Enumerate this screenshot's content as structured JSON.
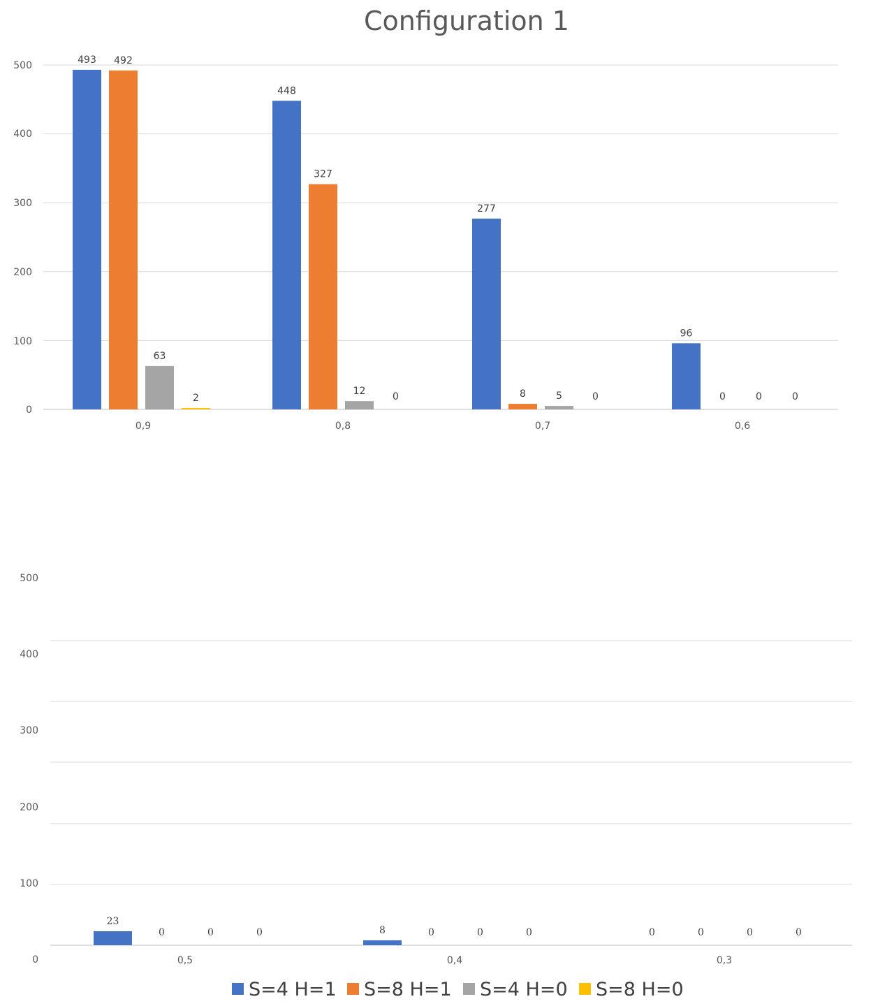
{
  "chart_data": {
    "type": "bar",
    "title": "Configuration 1",
    "xlabel": "",
    "ylabel": "",
    "legend_position": "bottom",
    "grid": true,
    "series": [
      {
        "name": "S=4 H=1",
        "color": "#4472C4"
      },
      {
        "name": "S=8 H=1",
        "color": "#ED7D31"
      },
      {
        "name": "S=4 H=0",
        "color": "#A5A5A5"
      },
      {
        "name": "S=8 H=0",
        "color": "#FFC000"
      }
    ],
    "panels": [
      {
        "categories": [
          "0,9",
          "0,8",
          "0,7",
          "0,6"
        ],
        "ylim": [
          0,
          500
        ],
        "yticks": [
          "0",
          "100",
          "200",
          "300",
          "400",
          "500"
        ],
        "values": [
          [
            493,
            448,
            277,
            96
          ],
          [
            492,
            327,
            8,
            0
          ],
          [
            63,
            12,
            5,
            0
          ],
          [
            2,
            0,
            0,
            0
          ]
        ],
        "data_labels": [
          [
            "493",
            "448",
            "277",
            "96"
          ],
          [
            "492",
            "327",
            "8",
            "0"
          ],
          [
            "63",
            "12",
            "5",
            "0"
          ],
          [
            "2",
            "0",
            "0",
            "0"
          ]
        ]
      },
      {
        "categories": [
          "0,5",
          "0,4",
          "0,3"
        ],
        "ylim": [
          0,
          500
        ],
        "yticks": [
          "0",
          "100",
          "200",
          "300",
          "400",
          "500"
        ],
        "values": [
          [
            23,
            8,
            0
          ],
          [
            0,
            0,
            0
          ],
          [
            0,
            0,
            0
          ],
          [
            0,
            0,
            0
          ]
        ],
        "data_labels": [
          [
            "23",
            "8",
            "0"
          ],
          [
            "0",
            "0",
            "0"
          ],
          [
            "0",
            "0",
            "0"
          ],
          [
            "0",
            "0",
            "0"
          ]
        ]
      }
    ]
  }
}
